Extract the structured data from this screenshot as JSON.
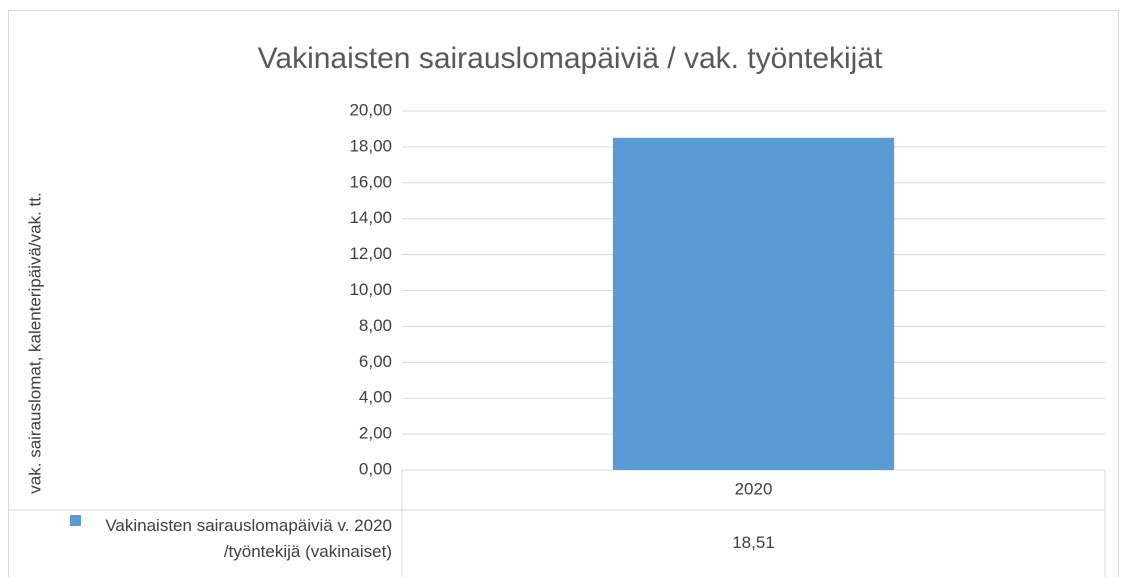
{
  "chart_data": {
    "type": "bar",
    "title": "Vakinaisten sairauslomapäiviä / vak. työntekijät",
    "y_label": "vak. sairauslomat, kalenteripäivä/vak. tt.",
    "categories": [
      "2020"
    ],
    "series": [
      {
        "name": "Vakinaisten sairauslomapäiviä v. 2020 /työntekijä (vakinaiset)",
        "color": "#5b9bd5",
        "values": [
          18.51
        ],
        "value_labels": [
          "18,51"
        ]
      }
    ],
    "ylim": [
      0,
      20
    ],
    "yticks": [
      {
        "value": 0,
        "label": "0,00"
      },
      {
        "value": 2,
        "label": "2,00"
      },
      {
        "value": 4,
        "label": "4,00"
      },
      {
        "value": 6,
        "label": "6,00"
      },
      {
        "value": 8,
        "label": "8,00"
      },
      {
        "value": 10,
        "label": "10,00"
      },
      {
        "value": 12,
        "label": "12,00"
      },
      {
        "value": 14,
        "label": "14,00"
      },
      {
        "value": 16,
        "label": "16,00"
      },
      {
        "value": 18,
        "label": "18,00"
      },
      {
        "value": 20,
        "label": "20,00"
      }
    ],
    "grid": true,
    "data_table": true
  }
}
